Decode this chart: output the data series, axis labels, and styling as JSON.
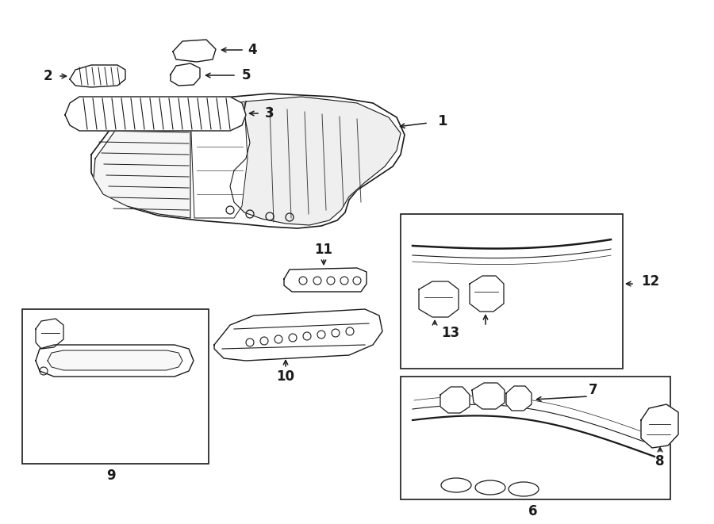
{
  "bg_color": "#ffffff",
  "lc": "#1a1a1a",
  "fig_width": 9.0,
  "fig_height": 6.61,
  "dpi": 100,
  "arrow_lw": 1.1,
  "part_lw": 1.0
}
